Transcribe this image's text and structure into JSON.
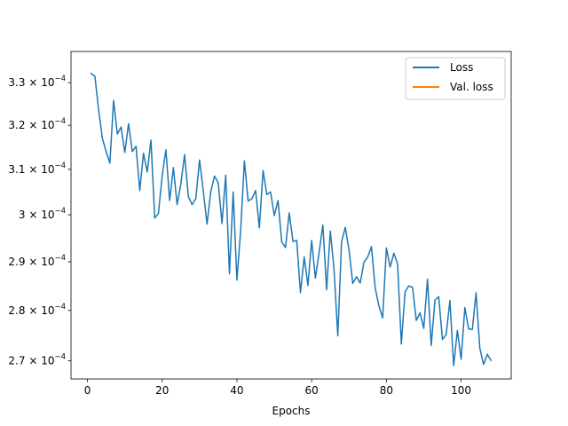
{
  "chart_data": {
    "type": "line",
    "title": "",
    "xlabel": "Epochs",
    "ylabel": "",
    "yscale": "log",
    "xlim": [
      -4.4,
      113.4
    ],
    "ylim": [
      0.0002665,
      0.0003375
    ],
    "grid": false,
    "legend_position": "top-right",
    "x_ticks": [
      0,
      20,
      40,
      60,
      80,
      100
    ],
    "x_tick_labels": [
      "0",
      "20",
      "40",
      "60",
      "80",
      "100"
    ],
    "y_ticks": [
      0.00027,
      0.00028,
      0.00029,
      0.0003,
      0.00031,
      0.00032,
      0.00033
    ],
    "y_tick_labels": [
      {
        "mantissa": "2.7 × 10",
        "exp": "−4"
      },
      {
        "mantissa": "2.8 × 10",
        "exp": "−4"
      },
      {
        "mantissa": "2.9 × 10",
        "exp": "−4"
      },
      {
        "mantissa": "3 × 10",
        "exp": "−4"
      },
      {
        "mantissa": "3.1 × 10",
        "exp": "−4"
      },
      {
        "mantissa": "3.2 × 10",
        "exp": "−4"
      },
      {
        "mantissa": "3.3 × 10",
        "exp": "−4"
      }
    ],
    "series": [
      {
        "name": "Loss",
        "color": "#1f77b4",
        "x": [
          1,
          2,
          3,
          4,
          5,
          6,
          7,
          8,
          9,
          10,
          11,
          12,
          13,
          14,
          15,
          16,
          17,
          18,
          19,
          20,
          21,
          22,
          23,
          24,
          25,
          26,
          27,
          28,
          29,
          30,
          31,
          32,
          33,
          34,
          35,
          36,
          37,
          38,
          39,
          40,
          41,
          42,
          43,
          44,
          45,
          46,
          47,
          48,
          49,
          50,
          51,
          52,
          53,
          54,
          55,
          56,
          57,
          58,
          59,
          60,
          61,
          62,
          63,
          64,
          65,
          66,
          67,
          68,
          69,
          70,
          71,
          72,
          73,
          74,
          75,
          76,
          77,
          78,
          79,
          80,
          81,
          82,
          83,
          84,
          85,
          86,
          87,
          88,
          89,
          90,
          91,
          92,
          93,
          94,
          95,
          96,
          97,
          98,
          99,
          100,
          101,
          102,
          103,
          104,
          105,
          106,
          107,
          108
        ],
        "values": [
          0.0003322,
          0.0003315,
          0.0003235,
          0.000317,
          0.000314,
          0.0003114,
          0.0003258,
          0.000318,
          0.0003196,
          0.0003138,
          0.0003204,
          0.000314,
          0.0003152,
          0.0003053,
          0.0003136,
          0.0003094,
          0.0003166,
          0.0002993,
          0.0003003,
          0.0003086,
          0.0003144,
          0.0003031,
          0.0003104,
          0.0003022,
          0.0003068,
          0.0003133,
          0.000304,
          0.0003022,
          0.0003035,
          0.0003121,
          0.0003052,
          0.000298,
          0.000305,
          0.0003085,
          0.000307,
          0.0002981,
          0.0003087,
          0.0002875,
          0.000305,
          0.0002862,
          0.0002966,
          0.0003119,
          0.000303,
          0.0003035,
          0.0003053,
          0.0002972,
          0.0003097,
          0.0003044,
          0.000305,
          0.0002998,
          0.0003031,
          0.0002942,
          0.000293,
          0.0003004,
          0.0002943,
          0.0002945,
          0.0002836,
          0.000291,
          0.0002851,
          0.0002945,
          0.0002866,
          0.000292,
          0.0002978,
          0.0002842,
          0.0002965,
          0.0002883,
          0.0002749,
          0.0002942,
          0.0002973,
          0.0002925,
          0.0002855,
          0.0002869,
          0.0002856,
          0.0002899,
          0.000291,
          0.0002932,
          0.0002846,
          0.0002809,
          0.0002785,
          0.0002929,
          0.0002889,
          0.0002918,
          0.0002895,
          0.0002733,
          0.0002838,
          0.000285,
          0.0002847,
          0.000278,
          0.0002795,
          0.0002764,
          0.0002864,
          0.000273,
          0.0002821,
          0.0002828,
          0.0002742,
          0.0002752,
          0.000282,
          0.0002691,
          0.000276,
          0.0002703,
          0.0002806,
          0.0002763,
          0.0002762,
          0.0002836,
          0.0002725,
          0.0002693,
          0.0002713,
          0.0002701
        ]
      },
      {
        "name": "Val. loss",
        "color": "#ff7f0e",
        "x": [],
        "values": []
      }
    ]
  }
}
